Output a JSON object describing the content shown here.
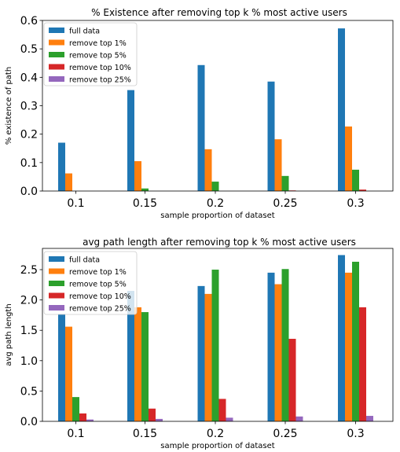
{
  "colors": {
    "full data": "#1f77b4",
    "remove top 1%": "#ff7f0e",
    "remove top 5%": "#2ca02c",
    "remove top 10%": "#d62728",
    "remove top 25%": "#9467bd"
  },
  "chart_data": [
    {
      "type": "bar",
      "title": "% Existence after removing top k % most active users",
      "xlabel": "sample proportion of dataset",
      "ylabel": "% existence of path",
      "categories": [
        "0.1",
        "0.15",
        "0.2",
        "0.25",
        "0.3"
      ],
      "ylim": [
        0,
        0.6
      ],
      "yticks": [
        "0.0",
        "0.1",
        "0.2",
        "0.3",
        "0.4",
        "0.5",
        "0.6"
      ],
      "legend_position": "top-left",
      "series": [
        {
          "name": "full data",
          "values": [
            0.17,
            0.355,
            0.443,
            0.385,
            0.572
          ]
        },
        {
          "name": "remove top 1%",
          "values": [
            0.062,
            0.105,
            0.147,
            0.182,
            0.227
          ]
        },
        {
          "name": "remove top 5%",
          "values": [
            0.0,
            0.009,
            0.033,
            0.053,
            0.075
          ]
        },
        {
          "name": "remove top 10%",
          "values": [
            0.0,
            0.0,
            0.0,
            0.002,
            0.005
          ]
        },
        {
          "name": "remove top 25%",
          "values": [
            0.0,
            0.0,
            0.0,
            0.0,
            0.0
          ]
        }
      ]
    },
    {
      "type": "bar",
      "title": "avg path length after removing top k % most active users",
      "xlabel": "sample proportion of dataset",
      "ylabel": "avg path length",
      "categories": [
        "0.1",
        "0.15",
        "0.2",
        "0.25",
        "0.3"
      ],
      "ylim": [
        0,
        2.85
      ],
      "yticks": [
        "0.0",
        "0.5",
        "1.0",
        "1.5",
        "2.0",
        "2.5"
      ],
      "legend_position": "top-left",
      "series": [
        {
          "name": "full data",
          "values": [
            1.77,
            2.15,
            2.23,
            2.45,
            2.74
          ]
        },
        {
          "name": "remove top 1%",
          "values": [
            1.56,
            1.88,
            2.1,
            2.26,
            2.45
          ]
        },
        {
          "name": "remove top 5%",
          "values": [
            0.4,
            1.8,
            2.5,
            2.51,
            2.63
          ]
        },
        {
          "name": "remove top 10%",
          "values": [
            0.13,
            0.21,
            0.37,
            1.36,
            1.88
          ]
        },
        {
          "name": "remove top 25%",
          "values": [
            0.03,
            0.04,
            0.06,
            0.08,
            0.09
          ]
        }
      ]
    }
  ]
}
